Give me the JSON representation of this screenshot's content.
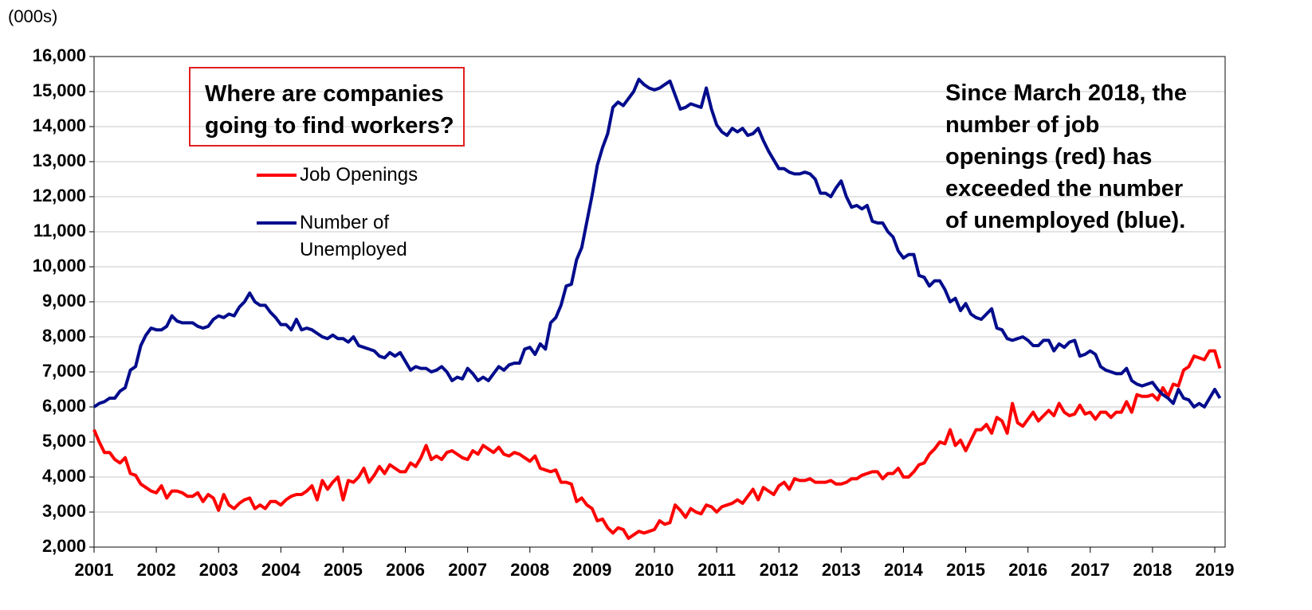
{
  "chart_data": {
    "type": "line",
    "unit_label": "(000s)",
    "annotation_box": "Where are companies going to find workers?",
    "annotation_note": "Since March 2018, the number of job openings (red) has exceeded the number of unemployed (blue).",
    "categories": [
      "2001",
      null,
      null,
      null,
      null,
      null,
      null,
      null,
      null,
      null,
      null,
      null,
      "2002",
      null,
      null,
      null,
      null,
      null,
      null,
      null,
      null,
      null,
      null,
      null,
      "2003",
      null,
      null,
      null,
      null,
      null,
      null,
      null,
      null,
      null,
      null,
      null,
      "2004",
      null,
      null,
      null,
      null,
      null,
      null,
      null,
      null,
      null,
      null,
      null,
      "2005",
      null,
      null,
      null,
      null,
      null,
      null,
      null,
      null,
      null,
      null,
      null,
      "2006",
      null,
      null,
      null,
      null,
      null,
      null,
      null,
      null,
      null,
      null,
      null,
      "2007",
      null,
      null,
      null,
      null,
      null,
      null,
      null,
      null,
      null,
      null,
      null,
      "2008",
      null,
      null,
      null,
      null,
      null,
      null,
      null,
      null,
      null,
      null,
      null,
      "2009",
      null,
      null,
      null,
      null,
      null,
      null,
      null,
      null,
      null,
      null,
      null,
      "2010",
      null,
      null,
      null,
      null,
      null,
      null,
      null,
      null,
      null,
      null,
      null,
      "2011",
      null,
      null,
      null,
      null,
      null,
      null,
      null,
      null,
      null,
      null,
      null,
      "2012",
      null,
      null,
      null,
      null,
      null,
      null,
      null,
      null,
      null,
      null,
      null,
      "2013",
      null,
      null,
      null,
      null,
      null,
      null,
      null,
      null,
      null,
      null,
      null,
      "2014",
      null,
      null,
      null,
      null,
      null,
      null,
      null,
      null,
      null,
      null,
      null,
      "2015",
      null,
      null,
      null,
      null,
      null,
      null,
      null,
      null,
      null,
      null,
      null,
      "2016",
      null,
      null,
      null,
      null,
      null,
      null,
      null,
      null,
      null,
      null,
      null,
      "2017",
      null,
      null,
      null,
      null,
      null,
      null,
      null,
      null,
      null,
      null,
      null,
      "2018",
      null,
      null,
      null,
      null,
      null,
      null,
      null,
      null,
      null,
      null,
      null,
      "2019",
      null
    ],
    "series": [
      {
        "name": "Job Openings",
        "color": "#ff0000",
        "values": [
          5350,
          5000,
          4700,
          4700,
          4500,
          4400,
          4550,
          4100,
          4050,
          3800,
          3700,
          3600,
          3550,
          3750,
          3400,
          3600,
          3600,
          3550,
          3450,
          3450,
          3550,
          3300,
          3500,
          3400,
          3050,
          3500,
          3200,
          3100,
          3250,
          3350,
          3400,
          3100,
          3200,
          3100,
          3300,
          3300,
          3200,
          3350,
          3450,
          3500,
          3500,
          3600,
          3750,
          3350,
          3900,
          3650,
          3850,
          4000,
          3350,
          3900,
          3850,
          4000,
          4250,
          3850,
          4050,
          4300,
          4100,
          4350,
          4250,
          4150,
          4150,
          4400,
          4300,
          4550,
          4900,
          4500,
          4600,
          4500,
          4700,
          4750,
          4650,
          4550,
          4500,
          4750,
          4650,
          4900,
          4800,
          4700,
          4850,
          4650,
          4600,
          4700,
          4650,
          4550,
          4450,
          4600,
          4250,
          4200,
          4150,
          4200,
          3850,
          3850,
          3800,
          3300,
          3400,
          3200,
          3100,
          2750,
          2800,
          2550,
          2400,
          2550,
          2500,
          2250,
          2350,
          2450,
          2400,
          2450,
          2500,
          2750,
          2650,
          2700,
          3200,
          3050,
          2850,
          3100,
          3000,
          2950,
          3200,
          3150,
          3000,
          3150,
          3200,
          3250,
          3350,
          3250,
          3450,
          3650,
          3350,
          3700,
          3600,
          3500,
          3750,
          3850,
          3650,
          3950,
          3900,
          3900,
          3950,
          3850,
          3850,
          3850,
          3900,
          3800,
          3800,
          3850,
          3950,
          3950,
          4050,
          4100,
          4150,
          4150,
          3950,
          4100,
          4100,
          4250,
          4000,
          4000,
          4150,
          4350,
          4400,
          4650,
          4800,
          5000,
          4950,
          5350,
          4900,
          5050,
          4750,
          5050,
          5350,
          5350,
          5500,
          5250,
          5700,
          5600,
          5250,
          6100,
          5550,
          5450,
          5650,
          5850,
          5600,
          5750,
          5900,
          5750,
          6100,
          5850,
          5750,
          5800,
          6050,
          5800,
          5850,
          5650,
          5850,
          5850,
          5700,
          5850,
          5850,
          6150,
          5850,
          6350,
          6300,
          6300,
          6350,
          6200,
          6550,
          6300,
          6650,
          6600,
          7050,
          7150,
          7450,
          7400,
          7350,
          7600,
          7600,
          7100
        ]
      },
      {
        "name": "Number of Unemployed",
        "color": "#000c8c",
        "values": [
          6000,
          6100,
          6150,
          6250,
          6250,
          6450,
          6550,
          7050,
          7150,
          7750,
          8050,
          8250,
          8200,
          8200,
          8300,
          8600,
          8450,
          8400,
          8400,
          8400,
          8300,
          8250,
          8300,
          8500,
          8600,
          8550,
          8650,
          8600,
          8850,
          9000,
          9250,
          9000,
          8900,
          8900,
          8700,
          8550,
          8350,
          8350,
          8200,
          8500,
          8200,
          8250,
          8200,
          8100,
          8000,
          7950,
          8050,
          7950,
          7950,
          7850,
          8000,
          7750,
          7700,
          7650,
          7600,
          7450,
          7400,
          7550,
          7450,
          7550,
          7300,
          7050,
          7150,
          7100,
          7100,
          7000,
          7050,
          7150,
          7000,
          6750,
          6850,
          6800,
          7100,
          6950,
          6750,
          6850,
          6750,
          6950,
          7150,
          7050,
          7200,
          7250,
          7250,
          7650,
          7700,
          7500,
          7800,
          7650,
          8400,
          8550,
          8900,
          9450,
          9500,
          10200,
          10550,
          11300,
          12050,
          12900,
          13400,
          13800,
          14550,
          14700,
          14600,
          14800,
          15000,
          15350,
          15200,
          15100,
          15050,
          15100,
          15200,
          15300,
          14900,
          14500,
          14550,
          14650,
          14600,
          14550,
          15100,
          14500,
          14050,
          13850,
          13750,
          13950,
          13850,
          13950,
          13750,
          13800,
          13950,
          13600,
          13300,
          13050,
          12800,
          12800,
          12700,
          12650,
          12650,
          12700,
          12650,
          12500,
          12100,
          12100,
          12000,
          12250,
          12450,
          12000,
          11700,
          11750,
          11650,
          11750,
          11300,
          11250,
          11250,
          11000,
          10850,
          10450,
          10250,
          10350,
          10350,
          9750,
          9700,
          9450,
          9600,
          9600,
          9350,
          9000,
          9100,
          8750,
          8950,
          8650,
          8550,
          8500,
          8650,
          8800,
          8250,
          8200,
          7950,
          7900,
          7950,
          8000,
          7900,
          7750,
          7750,
          7900,
          7900,
          7600,
          7800,
          7700,
          7850,
          7900,
          7450,
          7500,
          7600,
          7500,
          7150,
          7050,
          7000,
          6950,
          6950,
          7100,
          6750,
          6650,
          6600,
          6650,
          6700,
          6500,
          6350,
          6250,
          6100,
          6500,
          6250,
          6200,
          6000,
          6100,
          6000,
          6250,
          6500,
          6250
        ]
      }
    ],
    "ylim": [
      2000,
      16000
    ],
    "yticks": [
      {
        "value": 2000,
        "label": "2,000"
      },
      {
        "value": 3000,
        "label": "3,000"
      },
      {
        "value": 4000,
        "label": "4,000"
      },
      {
        "value": 5000,
        "label": "5,000"
      },
      {
        "value": 6000,
        "label": "6,000"
      },
      {
        "value": 7000,
        "label": "7,000"
      },
      {
        "value": 8000,
        "label": "8,000"
      },
      {
        "value": 9000,
        "label": "9,000"
      },
      {
        "value": 10000,
        "label": "10,000"
      },
      {
        "value": 11000,
        "label": "11,000"
      },
      {
        "value": 12000,
        "label": "12,000"
      },
      {
        "value": 13000,
        "label": "13,000"
      },
      {
        "value": 14000,
        "label": "14,000"
      },
      {
        "value": 15000,
        "label": "15,000"
      },
      {
        "value": 16000,
        "label": "16,000"
      }
    ],
    "grid": true
  }
}
